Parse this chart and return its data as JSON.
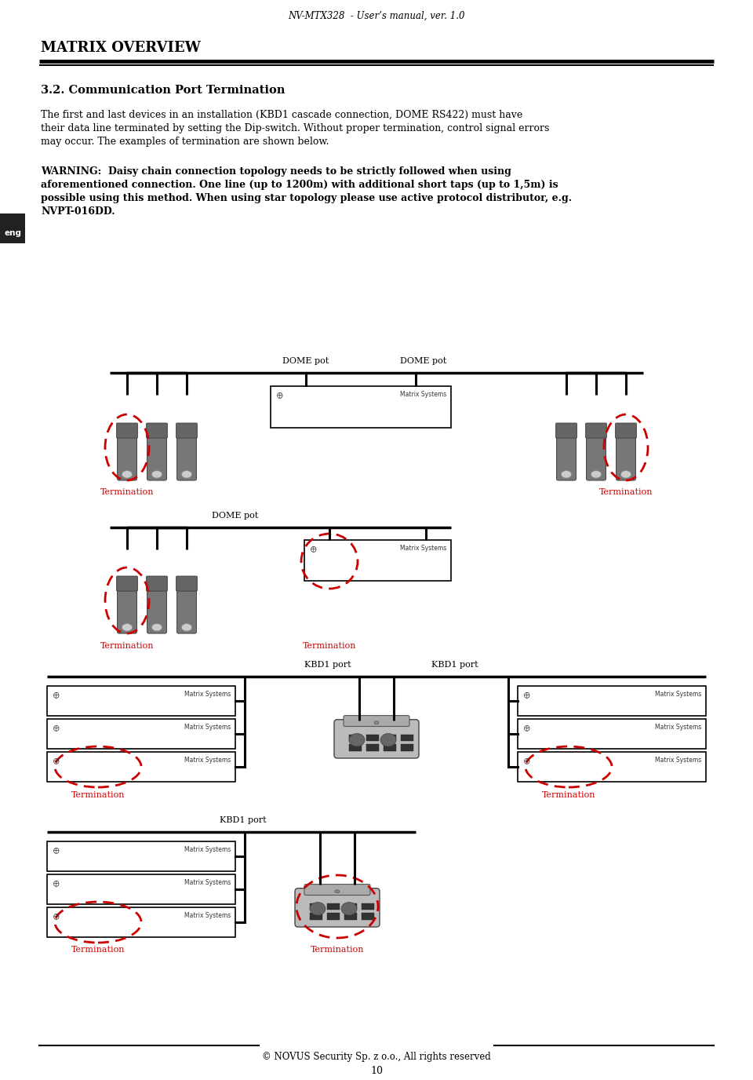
{
  "header_text": "NV-MTX328  - User’s manual, ver. 1.0",
  "section_title": "MATRIX OVERVIEW",
  "subsection": "3.2. Communication Port Termination",
  "para1_lines": [
    "The first and last devices in an installation (KBD1 cascade connection, DOME RS422) must have",
    "their data line terminated by setting the Dip-switch. Without proper termination, control signal errors",
    "may occur. The examples of termination are shown below."
  ],
  "warning_text": "WARNING:  Daisy chain connection topology needs to be strictly followed when using aforementioned connection. One line (up to 1200m) with additional short taps (up to 1,5m) is possible using this method. When using star topology please use active protocol distributor, e.g. NVPT-016DD.",
  "eng_label": "eng",
  "footer_copyright": "© NOVUS Security Sp. z o.o., All rights reserved",
  "footer_page": "10",
  "bg_color": "#ffffff",
  "text_color": "#000000",
  "red_color": "#cc0000",
  "line_color": "#000000",
  "camera_body_color": "#777777",
  "camera_body_color2": "#888888",
  "box_gray": "#d0d0d0",
  "kbd_color": "#aaaaaa"
}
